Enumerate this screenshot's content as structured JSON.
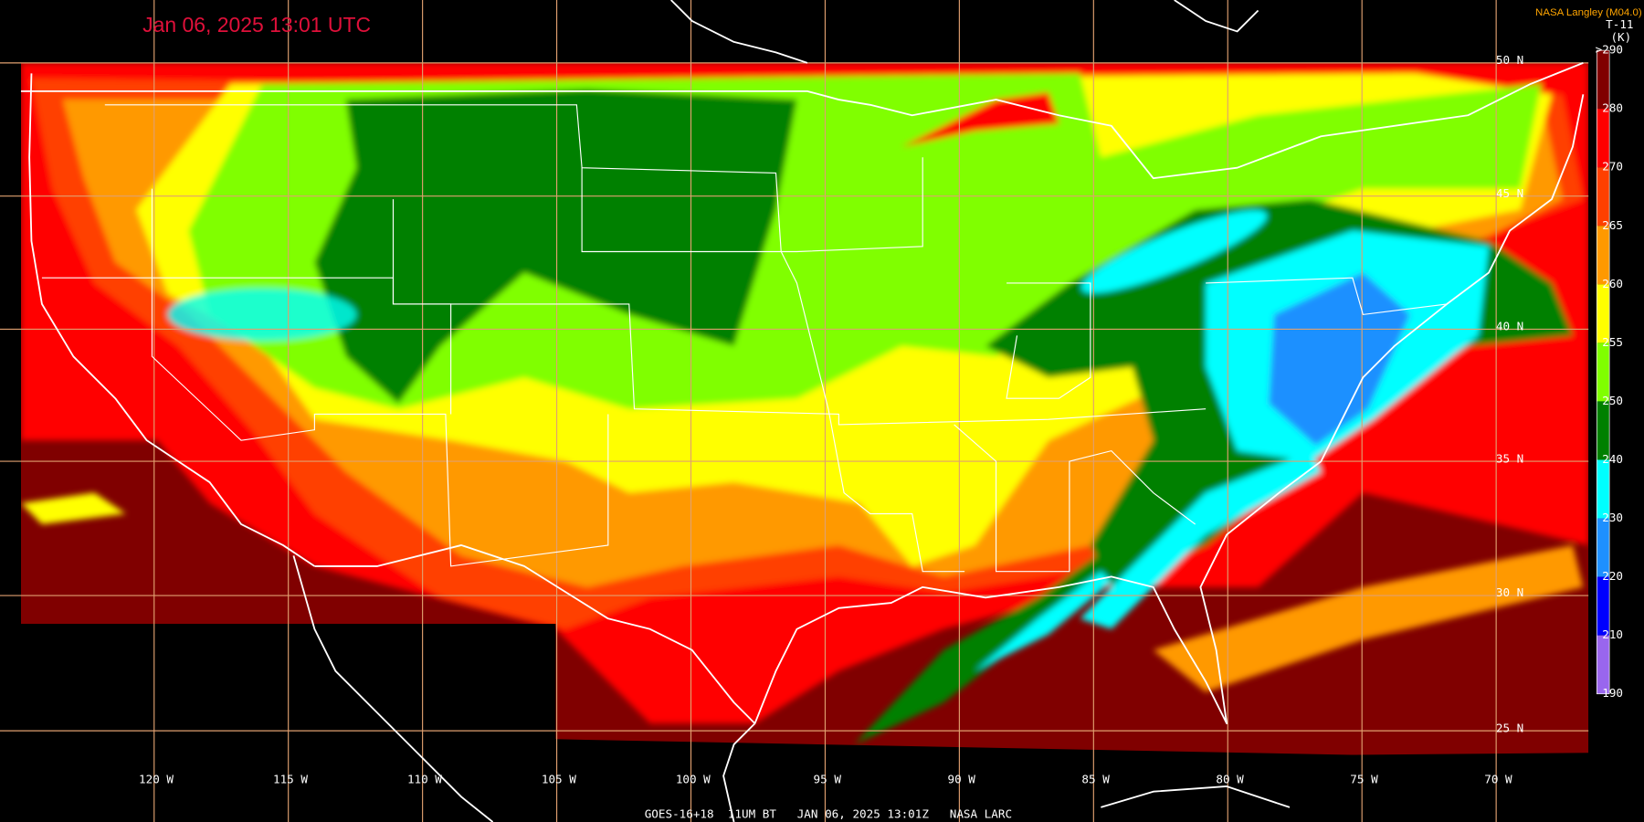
{
  "header": {
    "title": "Jan 06, 2025 13:01 UTC",
    "source": "NASA Langley (M04.0)"
  },
  "legend": {
    "title": "T-11",
    "unit": "(K)",
    "ticks": [
      {
        "value": 290,
        "label": ">290"
      },
      280,
      270,
      265,
      260,
      255,
      250,
      240,
      230,
      220,
      210,
      190
    ],
    "colors": [
      "#800000",
      "#ff0000",
      "#ff4000",
      "#ff9900",
      "#ffff00",
      "#80ff00",
      "#008000",
      "#00ffff",
      "#1e90ff",
      "#0000ff",
      "#9966ee"
    ]
  },
  "map": {
    "latitude_labels": [
      "50 N",
      "45 N",
      "40 N",
      "35 N",
      "30 N",
      "25 N"
    ],
    "longitude_labels": [
      "120 W",
      "115 W",
      "110 W",
      "105 W",
      "100 W",
      "95 W",
      "90 W",
      "85 W",
      "80 W",
      "75 W",
      "70 W"
    ]
  },
  "footer": {
    "caption": "GOES-16+18  11UM BT   JAN 06, 2025 13:01Z   NASA LARC"
  }
}
